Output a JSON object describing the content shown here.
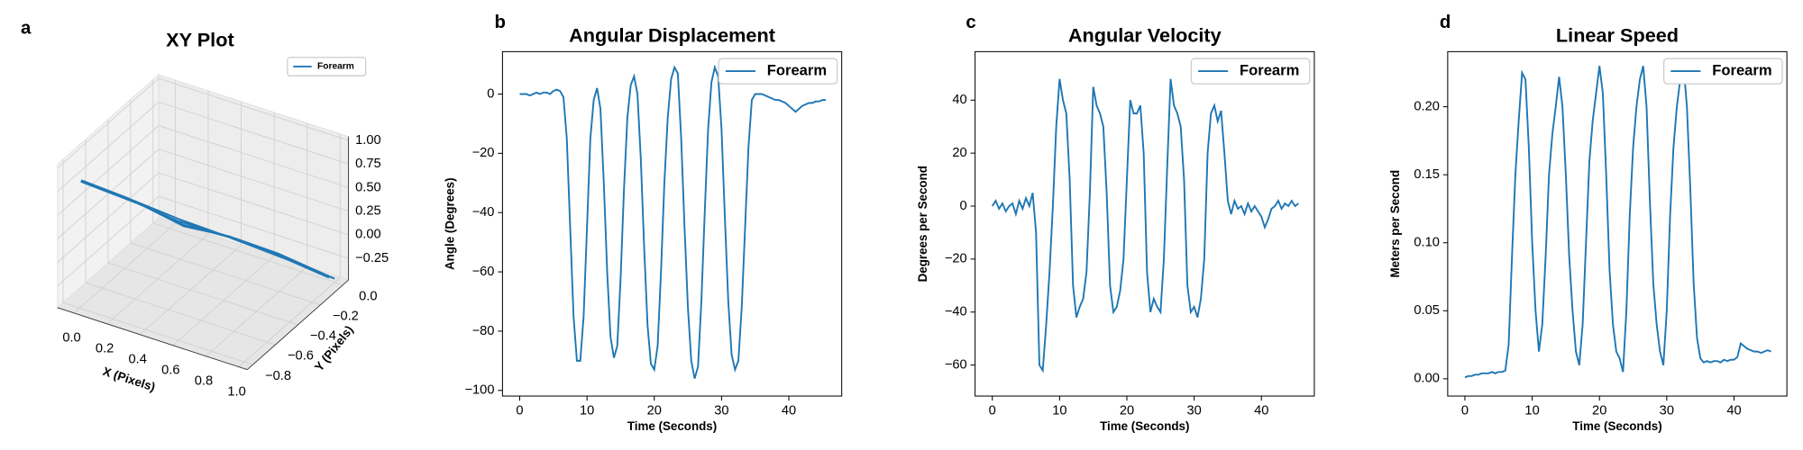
{
  "chart_data": [
    {
      "type": "line3d",
      "panel": "a",
      "title": "XY Plot",
      "xlabel": "X (Pixels)",
      "ylabel": "Y (Pixels)",
      "series": [
        {
          "name": "Forearm",
          "color": "#1f77b4",
          "x": [
            0.02,
            0.21,
            0.38,
            0.61,
            0.79,
            0.98,
            0.81,
            0.59,
            0.42,
            0.19,
            0.01,
            0.19,
            0.41,
            0.58,
            0.82,
            1.0,
            0.78,
            0.62,
            0.39,
            0.22,
            0.0,
            0.21,
            0.38,
            0.61,
            0.79,
            0.98,
            0.81,
            0.59,
            0.42,
            0.19,
            0.01,
            0.19,
            0.41,
            0.58,
            0.82,
            1.0,
            0.78,
            0.62,
            0.39,
            0.22,
            0.0,
            0.21,
            0.38,
            0.61,
            0.79,
            0.98,
            0.81,
            0.59,
            0.42,
            0.19,
            0.01
          ],
          "y": [
            -0.78,
            -0.63,
            -0.47,
            -0.31,
            -0.15,
            -0.02,
            -0.17,
            -0.33,
            -0.49,
            -0.64,
            -0.8,
            -0.65,
            -0.48,
            -0.33,
            -0.14,
            0.0,
            -0.18,
            -0.31,
            -0.5,
            -0.62,
            -0.79,
            -0.63,
            -0.47,
            -0.31,
            -0.15,
            -0.02,
            -0.17,
            -0.33,
            -0.49,
            -0.64,
            -0.8,
            -0.65,
            -0.48,
            -0.33,
            -0.14,
            0.0,
            -0.18,
            -0.31,
            -0.5,
            -0.62,
            -0.79,
            -0.63,
            -0.47,
            -0.31,
            -0.15,
            -0.02,
            -0.17,
            -0.33,
            -0.49,
            -0.64,
            -0.8
          ],
          "z": [
            0.84,
            0.6,
            0.33,
            0.08,
            -0.18,
            -0.42,
            -0.14,
            0.12,
            0.3,
            0.62,
            0.88,
            0.63,
            0.3,
            0.11,
            -0.2,
            -0.44,
            -0.11,
            0.09,
            0.35,
            0.57,
            0.85,
            0.6,
            0.33,
            0.08,
            -0.18,
            -0.42,
            -0.14,
            0.12,
            0.3,
            0.62,
            0.88,
            0.63,
            0.3,
            0.11,
            -0.2,
            -0.44,
            -0.11,
            0.09,
            0.35,
            0.57,
            0.85,
            0.6,
            0.33,
            0.08,
            -0.18,
            -0.42,
            -0.14,
            0.12,
            0.3,
            0.62,
            0.88
          ]
        }
      ],
      "xlim": [
        -0.1,
        1.05
      ],
      "ylim": [
        -0.85,
        0.05
      ],
      "zlim": [
        -0.48,
        1.04
      ],
      "xticks": [
        {
          "value": 0,
          "label": "0.0"
        },
        0.2,
        0.4,
        0.6,
        0.8,
        {
          "value": 1,
          "label": "1.0"
        }
      ],
      "yticks": [
        {
          "value": -0.8,
          "label": "−0.8"
        },
        {
          "value": -0.6,
          "label": "−0.6"
        },
        {
          "value": -0.4,
          "label": "−0.4"
        },
        {
          "value": -0.2,
          "label": "−0.2"
        },
        {
          "value": 0,
          "label": "0.0"
        }
      ],
      "zticks": [
        {
          "value": -0.25,
          "label": "−0.25"
        },
        {
          "value": 0,
          "label": "0.00"
        },
        0.25,
        {
          "value": 0.5,
          "label": "0.50"
        },
        0.75,
        {
          "value": 1,
          "label": "1.00"
        }
      ],
      "legend": "upper right"
    },
    {
      "type": "line",
      "panel": "b",
      "title": "Angular Displacement",
      "xlabel": "Time (Seconds)",
      "ylabel": "Angle (Degrees)",
      "x": [
        0,
        0.5,
        1,
        1.5,
        2,
        2.5,
        3,
        3.5,
        4,
        4.5,
        5,
        5.5,
        6,
        6.5,
        7,
        7.5,
        8,
        8.5,
        9,
        9.5,
        10,
        10.5,
        11,
        11.5,
        12,
        12.5,
        13,
        13.5,
        14,
        14.5,
        15,
        15.5,
        16,
        16.5,
        17,
        17.5,
        18,
        18.5,
        19,
        19.5,
        20,
        20.5,
        21,
        21.5,
        22,
        22.5,
        23,
        23.5,
        24,
        24.5,
        25,
        25.5,
        26,
        26.5,
        27,
        27.5,
        28,
        28.5,
        29,
        29.5,
        30,
        30.5,
        31,
        31.5,
        32,
        32.5,
        33,
        33.5,
        34,
        34.5,
        35,
        35.5,
        36,
        36.5,
        37,
        37.5,
        38,
        38.5,
        39,
        39.5,
        40,
        40.5,
        41,
        41.5,
        42,
        42.5,
        43,
        43.5,
        44,
        44.5,
        45,
        45.5
      ],
      "series": [
        {
          "name": "Forearm",
          "color": "#1f77b4",
          "values": [
            0,
            0,
            0,
            -0.5,
            0,
            0.5,
            0,
            0.5,
            0.5,
            0,
            1,
            1.5,
            1,
            -1,
            -15,
            -45,
            -75,
            -90,
            -90,
            -75,
            -45,
            -15,
            -2,
            2,
            -5,
            -30,
            -60,
            -82,
            -89,
            -85,
            -62,
            -32,
            -8,
            3,
            6,
            0,
            -22,
            -52,
            -78,
            -91,
            -93,
            -85,
            -60,
            -30,
            -8,
            5,
            9,
            7,
            -15,
            -45,
            -72,
            -90,
            -96,
            -92,
            -70,
            -40,
            -12,
            4,
            9,
            6,
            -12,
            -42,
            -70,
            -88,
            -93,
            -90,
            -72,
            -45,
            -18,
            -2,
            0,
            0,
            0,
            -0.5,
            -1,
            -1.5,
            -2,
            -2,
            -2.5,
            -3,
            -4,
            -5,
            -6,
            -5,
            -4,
            -3.5,
            -3,
            -3,
            -2.5,
            -2.5,
            -2,
            -2
          ]
        }
      ],
      "xlim": [
        -2.56,
        47.86
      ],
      "ylim": [
        -101.9,
        14.3
      ],
      "xticks": [
        0,
        10,
        20,
        30,
        40
      ],
      "yticks": [
        {
          "value": -100,
          "label": "−100"
        },
        {
          "value": -80,
          "label": "−80"
        },
        {
          "value": -60,
          "label": "−60"
        },
        {
          "value": -40,
          "label": "−40"
        },
        {
          "value": -20,
          "label": "−20"
        },
        0
      ],
      "legend": "upper right"
    },
    {
      "type": "line",
      "panel": "c",
      "title": "Angular Velocity",
      "xlabel": "Time (Seconds)",
      "ylabel": "Degrees per Second",
      "x": [
        0,
        0.5,
        1,
        1.5,
        2,
        2.5,
        3,
        3.5,
        4,
        4.5,
        5,
        5.5,
        6,
        6.5,
        7,
        7.5,
        8,
        8.5,
        9,
        9.5,
        10,
        10.5,
        11,
        11.5,
        12,
        12.5,
        13,
        13.5,
        14,
        14.5,
        15,
        15.5,
        16,
        16.5,
        17,
        17.5,
        18,
        18.5,
        19,
        19.5,
        20,
        20.5,
        21,
        21.5,
        22,
        22.5,
        23,
        23.5,
        24,
        24.5,
        25,
        25.5,
        26,
        26.5,
        27,
        27.5,
        28,
        28.5,
        29,
        29.5,
        30,
        30.5,
        31,
        31.5,
        32,
        32.5,
        33,
        33.5,
        34,
        34.5,
        35,
        35.5,
        36,
        36.5,
        37,
        37.5,
        38,
        38.5,
        39,
        39.5,
        40,
        40.5,
        41,
        41.5,
        42,
        42.5,
        43,
        43.5,
        44,
        44.5,
        45,
        45.5
      ],
      "series": [
        {
          "name": "Forearm",
          "color": "#1f77b4",
          "values": [
            0,
            2,
            -1,
            1,
            -2,
            0,
            1,
            -3,
            2,
            -1,
            3,
            0,
            5,
            -10,
            -60,
            -62,
            -45,
            -25,
            0,
            30,
            48,
            40,
            35,
            10,
            -30,
            -42,
            -38,
            -35,
            -25,
            5,
            45,
            38,
            35,
            30,
            5,
            -30,
            -40,
            -38,
            -32,
            -20,
            10,
            40,
            35,
            35,
            38,
            20,
            -25,
            -40,
            -35,
            -38,
            -40,
            -20,
            15,
            48,
            38,
            35,
            30,
            10,
            -30,
            -40,
            -38,
            -42,
            -35,
            -20,
            20,
            35,
            38,
            32,
            36,
            20,
            2,
            -3,
            2,
            -1,
            0,
            -3,
            1,
            -2,
            0,
            -2,
            -4,
            -8,
            -5,
            -1,
            0,
            2,
            -1,
            1,
            0,
            2,
            0,
            1
          ]
        }
      ],
      "xlim": [
        -2.56,
        47.86
      ],
      "ylim": [
        -71.7,
        58.3
      ],
      "xticks": [
        0,
        10,
        20,
        30,
        40
      ],
      "yticks": [
        {
          "value": -60,
          "label": "−60"
        },
        {
          "value": -40,
          "label": "−40"
        },
        {
          "value": -20,
          "label": "−20"
        },
        0,
        20,
        40
      ],
      "legend": "upper right"
    },
    {
      "type": "line",
      "panel": "d",
      "title": "Linear Speed",
      "xlabel": "Time (Seconds)",
      "ylabel": "Meters per Second",
      "x": [
        0,
        0.5,
        1,
        1.5,
        2,
        2.5,
        3,
        3.5,
        4,
        4.5,
        5,
        5.5,
        6,
        6.5,
        7,
        7.5,
        8,
        8.5,
        9,
        9.5,
        10,
        10.5,
        11,
        11.5,
        12,
        12.5,
        13,
        13.5,
        14,
        14.5,
        15,
        15.5,
        16,
        16.5,
        17,
        17.5,
        18,
        18.5,
        19,
        19.5,
        20,
        20.5,
        21,
        21.5,
        22,
        22.5,
        23,
        23.5,
        24,
        24.5,
        25,
        25.5,
        26,
        26.5,
        27,
        27.5,
        28,
        28.5,
        29,
        29.5,
        30,
        30.5,
        31,
        31.5,
        32,
        32.5,
        33,
        33.5,
        34,
        34.5,
        35,
        35.5,
        36,
        36.5,
        37,
        37.5,
        38,
        38.5,
        39,
        39.5,
        40,
        40.5,
        41,
        41.5,
        42,
        42.5,
        43,
        43.5,
        44,
        44.5,
        45,
        45.5
      ],
      "series": [
        {
          "name": "Forearm",
          "color": "#1f77b4",
          "values": [
            0.001,
            0.002,
            0.002,
            0.003,
            0.003,
            0.004,
            0.004,
            0.004,
            0.005,
            0.004,
            0.005,
            0.005,
            0.006,
            0.025,
            0.09,
            0.15,
            0.19,
            0.225,
            0.22,
            0.17,
            0.1,
            0.05,
            0.02,
            0.04,
            0.09,
            0.15,
            0.18,
            0.2,
            0.222,
            0.2,
            0.15,
            0.09,
            0.05,
            0.02,
            0.01,
            0.04,
            0.1,
            0.16,
            0.19,
            0.21,
            0.23,
            0.21,
            0.15,
            0.08,
            0.04,
            0.02,
            0.015,
            0.005,
            0.05,
            0.12,
            0.17,
            0.2,
            0.22,
            0.23,
            0.2,
            0.13,
            0.07,
            0.04,
            0.02,
            0.01,
            0.05,
            0.12,
            0.17,
            0.2,
            0.22,
            0.23,
            0.2,
            0.14,
            0.07,
            0.03,
            0.015,
            0.012,
            0.013,
            0.012,
            0.013,
            0.013,
            0.012,
            0.014,
            0.013,
            0.014,
            0.014,
            0.016,
            0.026,
            0.024,
            0.022,
            0.021,
            0.02,
            0.02,
            0.019,
            0.02,
            0.021,
            0.02
          ]
        }
      ],
      "xlim": [
        -2.56,
        47.86
      ],
      "ylim": [
        -0.0127,
        0.2405
      ],
      "xticks": [
        0,
        10,
        20,
        30,
        40
      ],
      "yticks": [
        {
          "value": 0,
          "label": "0.00"
        },
        0.05,
        {
          "value": 0.1,
          "label": "0.10"
        },
        0.15,
        {
          "value": 0.2,
          "label": "0.20"
        }
      ],
      "legend": "upper right"
    }
  ]
}
